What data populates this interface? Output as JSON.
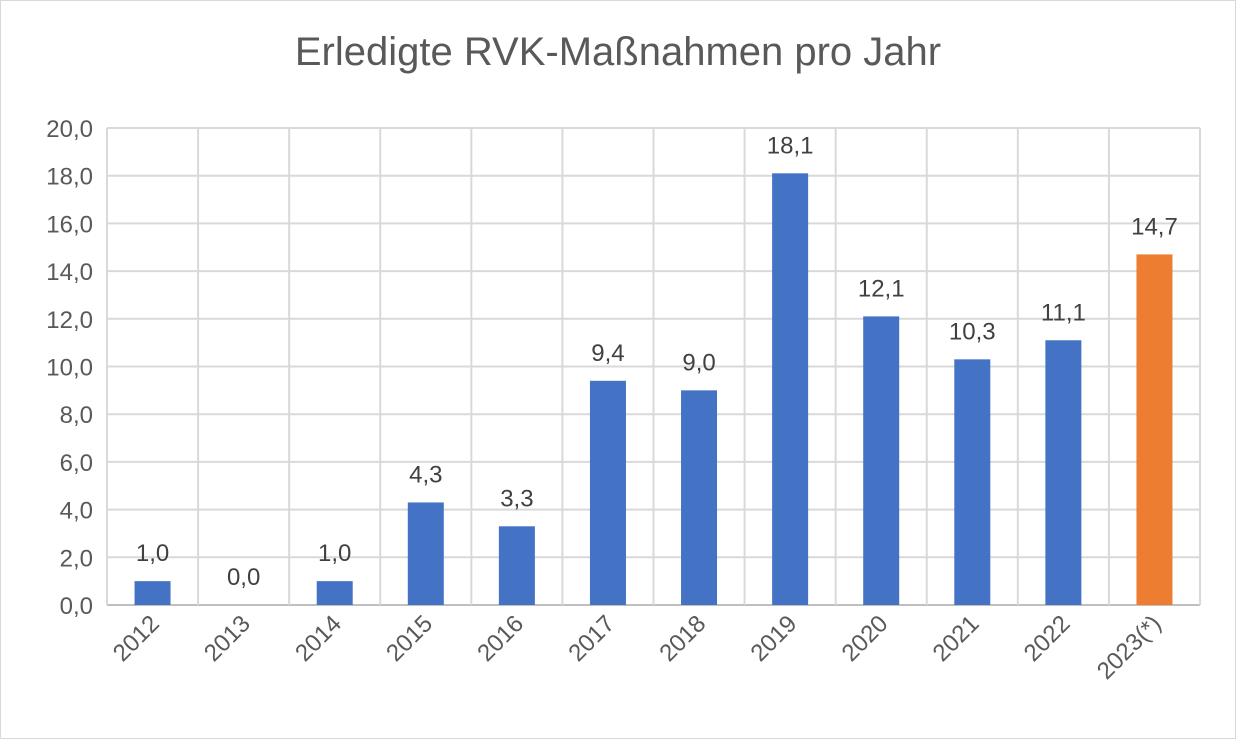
{
  "chart_data": {
    "type": "bar",
    "title": "Erledigte RVK-Maßnahmen pro Jahr",
    "xlabel": "",
    "ylabel": "",
    "ylim": [
      0,
      20
    ],
    "y_tick_step": 2,
    "y_tick_labels": [
      "0,0",
      "2,0",
      "4,0",
      "6,0",
      "8,0",
      "10,0",
      "12,0",
      "14,0",
      "16,0",
      "18,0",
      "20,0"
    ],
    "grid": true,
    "categories": [
      "2012",
      "2013",
      "2014",
      "2015",
      "2016",
      "2017",
      "2018",
      "2019",
      "2020",
      "2021",
      "2022",
      "2023(*)"
    ],
    "values": [
      1.0,
      0.0,
      1.0,
      4.3,
      3.3,
      9.4,
      9.0,
      18.1,
      12.1,
      10.3,
      11.1,
      14.7
    ],
    "value_labels": [
      "1,0",
      "0,0",
      "1,0",
      "4,3",
      "3,3",
      "9,4",
      "9,0",
      "18,1",
      "12,1",
      "10,3",
      "11,1",
      "14,7"
    ],
    "bar_colors": [
      "#4472c4",
      "#4472c4",
      "#4472c4",
      "#4472c4",
      "#4472c4",
      "#4472c4",
      "#4472c4",
      "#4472c4",
      "#4472c4",
      "#4472c4",
      "#4472c4",
      "#ed7d31"
    ],
    "grid_color": "#d9d9d9",
    "axis_color": "#bfbfbf"
  }
}
